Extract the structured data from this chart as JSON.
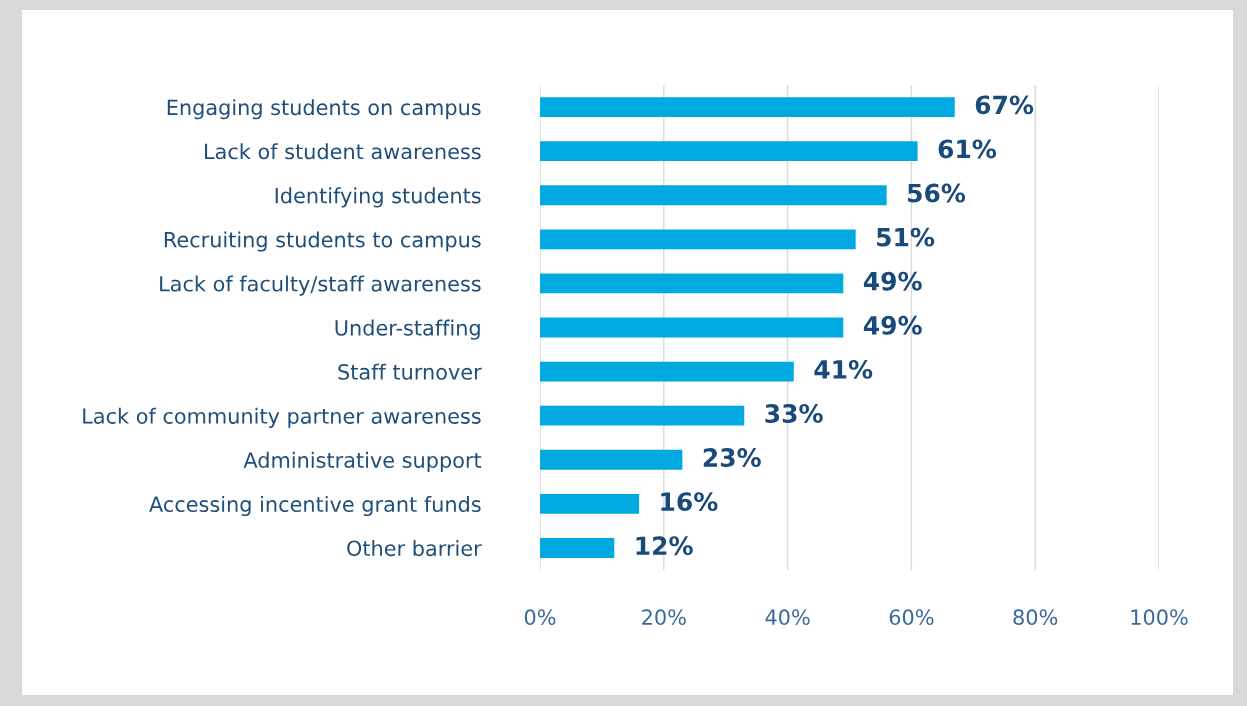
{
  "chart_data": {
    "type": "bar",
    "orientation": "horizontal",
    "categories": [
      "Engaging students on campus",
      "Lack of student awareness",
      "Identifying students",
      "Recruiting students to campus",
      "Lack of faculty/staff awareness",
      "Under-staffing",
      "Staff turnover",
      "Lack of community partner awareness",
      "Administrative support",
      "Accessing incentive grant funds",
      "Other barrier"
    ],
    "values": [
      67,
      61,
      56,
      51,
      49,
      49,
      41,
      33,
      23,
      16,
      12
    ],
    "value_labels": [
      "67%",
      "61%",
      "56%",
      "51%",
      "49%",
      "49%",
      "41%",
      "33%",
      "23%",
      "16%",
      "12%"
    ],
    "color": "#00a9e0",
    "xlim": [
      0,
      100
    ],
    "xticks": [
      {
        "value": 0,
        "label": "0%"
      },
      {
        "value": 20,
        "label": "20%"
      },
      {
        "value": 40,
        "label": "40%"
      },
      {
        "value": 60,
        "label": "60%"
      },
      {
        "value": 80,
        "label": "80%"
      },
      {
        "value": 100,
        "label": "100%"
      }
    ],
    "grid": "x"
  }
}
